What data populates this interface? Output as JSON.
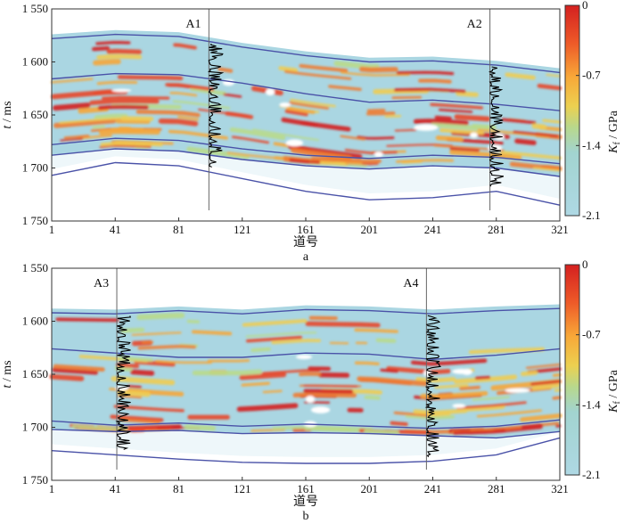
{
  "chart_data": [
    {
      "type": "heatmap",
      "panel_label": "a",
      "xlabel": "道号",
      "ylabel_main": "t",
      "ylabel_unit": " / ms",
      "x_ticks": [
        "1",
        "41",
        "81",
        "121",
        "161",
        "201",
        "241",
        "281",
        "321"
      ],
      "y_ticks": [
        "1 550",
        "1 600",
        "1 650",
        "1 700",
        "1 750"
      ],
      "xlim": [
        1,
        321
      ],
      "ylim": [
        1550,
        1750
      ],
      "colorbar": {
        "label_main": "K",
        "label_sub": "f",
        "label_unit": " / GPa",
        "ticks": [
          "0",
          "-0.7",
          "-1.4",
          "-2.1"
        ],
        "range": [
          -2.1,
          0
        ]
      },
      "wells": [
        {
          "name": "A1",
          "trace": 100
        },
        {
          "name": "A2",
          "trace": 277
        }
      ],
      "horizons": [
        {
          "points": [
            [
              1,
              1578
            ],
            [
              41,
              1574
            ],
            [
              81,
              1576
            ],
            [
              121,
              1586
            ],
            [
              161,
              1594
            ],
            [
              201,
              1600
            ],
            [
              241,
              1599
            ],
            [
              281,
              1603
            ],
            [
              321,
              1610
            ]
          ]
        },
        {
          "points": [
            [
              1,
              1616
            ],
            [
              41,
              1611
            ],
            [
              81,
              1612
            ],
            [
              121,
              1620
            ],
            [
              161,
              1630
            ],
            [
              201,
              1638
            ],
            [
              241,
              1636
            ],
            [
              281,
              1640
            ],
            [
              321,
              1646
            ]
          ]
        },
        {
          "points": [
            [
              1,
              1678
            ],
            [
              41,
              1672
            ],
            [
              81,
              1674
            ],
            [
              121,
              1682
            ],
            [
              161,
              1688
            ],
            [
              201,
              1691
            ],
            [
              241,
              1688
            ],
            [
              281,
              1690
            ],
            [
              321,
              1696
            ]
          ]
        },
        {
          "points": [
            [
              1,
              1688
            ],
            [
              41,
              1682
            ],
            [
              81,
              1684
            ],
            [
              121,
              1692
            ],
            [
              161,
              1698
            ],
            [
              201,
              1701
            ],
            [
              241,
              1698
            ],
            [
              281,
              1700
            ],
            [
              321,
              1708
            ]
          ]
        },
        {
          "points": [
            [
              1,
              1707
            ],
            [
              41,
              1695
            ],
            [
              81,
              1698
            ],
            [
              121,
              1710
            ],
            [
              161,
              1722
            ],
            [
              201,
              1730
            ],
            [
              241,
              1728
            ],
            [
              281,
              1722
            ],
            [
              321,
              1735
            ]
          ]
        }
      ]
    },
    {
      "type": "heatmap",
      "panel_label": "b",
      "xlabel": "道号",
      "ylabel_main": "t",
      "ylabel_unit": " / ms",
      "x_ticks": [
        "1",
        "41",
        "81",
        "121",
        "161",
        "201",
        "241",
        "281",
        "321"
      ],
      "y_ticks": [
        "1 550",
        "1 600",
        "1 650",
        "1 700",
        "1 750"
      ],
      "xlim": [
        1,
        321
      ],
      "ylim": [
        1550,
        1750
      ],
      "colorbar": {
        "label_main": "K",
        "label_sub": "f",
        "label_unit": " / GPa",
        "ticks": [
          "0",
          "-0.7",
          "-1.4",
          "-2.1"
        ],
        "range": [
          -2.1,
          0
        ]
      },
      "wells": [
        {
          "name": "A3",
          "trace": 42
        },
        {
          "name": "A4",
          "trace": 237
        }
      ],
      "horizons": [
        {
          "points": [
            [
              1,
              1592
            ],
            [
              41,
              1593
            ],
            [
              81,
              1590
            ],
            [
              121,
              1593
            ],
            [
              161,
              1589
            ],
            [
              201,
              1590
            ],
            [
              241,
              1593
            ],
            [
              281,
              1590
            ],
            [
              321,
              1588
            ]
          ]
        },
        {
          "points": [
            [
              1,
              1626
            ],
            [
              41,
              1630
            ],
            [
              81,
              1634
            ],
            [
              121,
              1634
            ],
            [
              161,
              1630
            ],
            [
              201,
              1631
            ],
            [
              241,
              1636
            ],
            [
              281,
              1632
            ],
            [
              321,
              1626
            ]
          ]
        },
        {
          "points": [
            [
              1,
              1694
            ],
            [
              41,
              1698
            ],
            [
              81,
              1696
            ],
            [
              121,
              1699
            ],
            [
              161,
              1697
            ],
            [
              201,
              1699
            ],
            [
              241,
              1701
            ],
            [
              281,
              1699
            ],
            [
              321,
              1693
            ]
          ]
        },
        {
          "points": [
            [
              1,
              1702
            ],
            [
              41,
              1704
            ],
            [
              81,
              1703
            ],
            [
              121,
              1706
            ],
            [
              161,
              1705
            ],
            [
              201,
              1706
            ],
            [
              241,
              1708
            ],
            [
              281,
              1710
            ],
            [
              321,
              1704
            ]
          ]
        },
        {
          "points": [
            [
              1,
              1722
            ],
            [
              41,
              1726
            ],
            [
              81,
              1730
            ],
            [
              121,
              1733
            ],
            [
              161,
              1734
            ],
            [
              201,
              1734
            ],
            [
              241,
              1732
            ],
            [
              281,
              1726
            ],
            [
              321,
              1710
            ]
          ]
        }
      ]
    }
  ]
}
